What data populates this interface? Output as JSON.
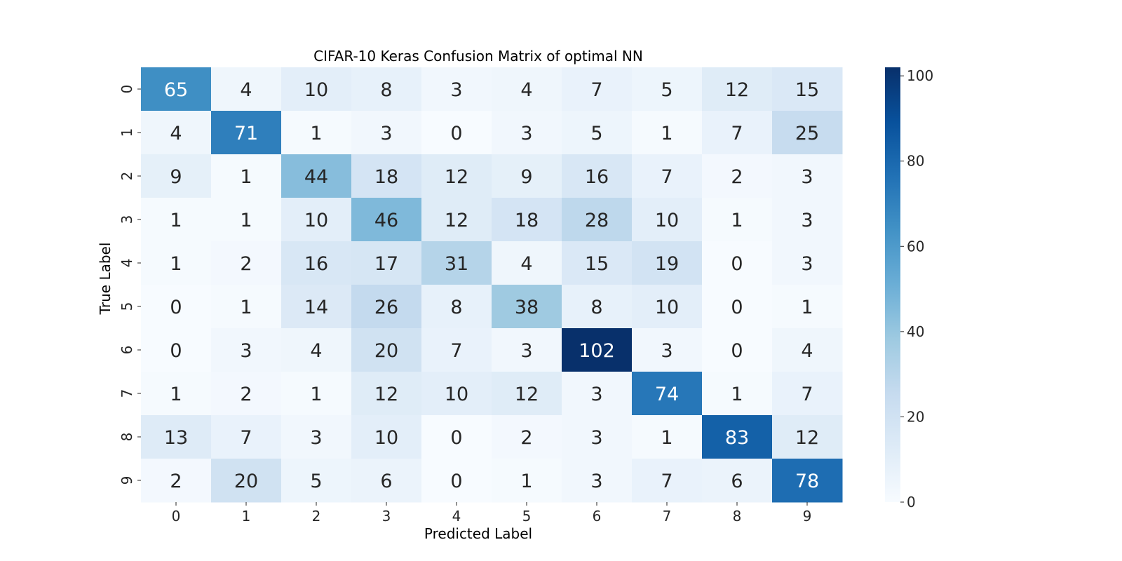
{
  "chart_data": {
    "type": "heatmap",
    "title": "CIFAR-10 Keras Confusion Matrix of optimal NN",
    "xlabel": "Predicted Label",
    "ylabel": "True Label",
    "x_categories": [
      "0",
      "1",
      "2",
      "3",
      "4",
      "5",
      "6",
      "7",
      "8",
      "9"
    ],
    "y_categories": [
      "0",
      "1",
      "2",
      "3",
      "4",
      "5",
      "6",
      "7",
      "8",
      "9"
    ],
    "values": [
      [
        65,
        4,
        10,
        8,
        3,
        4,
        7,
        5,
        12,
        15
      ],
      [
        4,
        71,
        1,
        3,
        0,
        3,
        5,
        1,
        7,
        25
      ],
      [
        9,
        1,
        44,
        18,
        12,
        9,
        16,
        7,
        2,
        3
      ],
      [
        1,
        1,
        10,
        46,
        12,
        18,
        28,
        10,
        1,
        3
      ],
      [
        1,
        2,
        16,
        17,
        31,
        4,
        15,
        19,
        0,
        3
      ],
      [
        0,
        1,
        14,
        26,
        8,
        38,
        8,
        10,
        0,
        1
      ],
      [
        0,
        3,
        4,
        20,
        7,
        3,
        102,
        3,
        0,
        4
      ],
      [
        1,
        2,
        1,
        12,
        10,
        12,
        3,
        74,
        1,
        7
      ],
      [
        13,
        7,
        3,
        10,
        0,
        2,
        3,
        1,
        83,
        12
      ],
      [
        2,
        20,
        5,
        6,
        0,
        1,
        3,
        7,
        6,
        78
      ]
    ],
    "colorbar": {
      "min": 0,
      "max": 102,
      "ticks": [
        "0",
        "20",
        "40",
        "60",
        "80",
        "100"
      ],
      "colormap": "Blues",
      "colors": [
        "#f7fbff",
        "#deebf7",
        "#c6dbef",
        "#9ecae1",
        "#6baed6",
        "#4292c6",
        "#2171b5",
        "#08519c",
        "#08306b"
      ]
    }
  }
}
